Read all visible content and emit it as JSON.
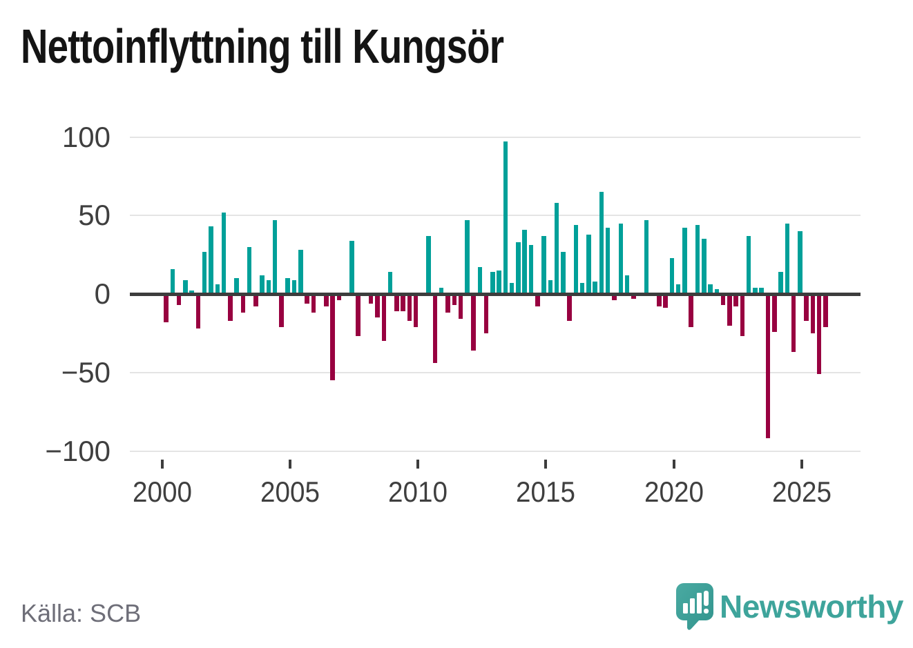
{
  "title": "Nettoinflyttning till Kungsör",
  "source": "Källa: SCB",
  "brand": {
    "name": "Newsworthy"
  },
  "colors": {
    "positive": "#00a099",
    "negative": "#980140",
    "axis": "#3d3d3d",
    "grid": "#e4e4e4",
    "tick_label": "#3f3f3f",
    "title": "#141414",
    "source": "#6e6e78",
    "brand": "#3ea49b"
  },
  "chart_data": {
    "type": "bar",
    "title": "Nettoinflyttning till Kungsör",
    "period": "quarterly",
    "xlabel": "",
    "ylabel": "",
    "ylim": [
      -100,
      100
    ],
    "grid": "horizontal",
    "legend": "none",
    "y_ticks": [
      {
        "value": 100,
        "label": "100"
      },
      {
        "value": 50,
        "label": "50"
      },
      {
        "value": 0,
        "label": "0"
      },
      {
        "value": -50,
        "label": "−50"
      },
      {
        "value": -100,
        "label": "−100"
      }
    ],
    "x_ticks": [
      {
        "year": 2000,
        "label": "2000"
      },
      {
        "year": 2005,
        "label": "2005"
      },
      {
        "year": 2010,
        "label": "2010"
      },
      {
        "year": 2015,
        "label": "2015"
      },
      {
        "year": 2020,
        "label": "2020"
      },
      {
        "year": 2025,
        "label": "2025"
      }
    ],
    "start_year": 2000,
    "series": [
      {
        "name": "Nettoinflyttning",
        "years": [
          {
            "year": 2000,
            "values": [
              -18,
              16,
              -7,
              9
            ]
          },
          {
            "year": 2001,
            "values": [
              2,
              -22,
              27,
              43
            ]
          },
          {
            "year": 2002,
            "values": [
              6,
              52,
              -17,
              10
            ]
          },
          {
            "year": 2003,
            "values": [
              -12,
              30,
              -8,
              12
            ]
          },
          {
            "year": 2004,
            "values": [
              9,
              47,
              -21,
              10
            ]
          },
          {
            "year": 2005,
            "values": [
              9,
              28,
              -6,
              -12
            ]
          },
          {
            "year": 2006,
            "values": [
              0,
              -8,
              -55,
              -4
            ]
          },
          {
            "year": 2007,
            "values": [
              0,
              34,
              -27,
              0
            ]
          },
          {
            "year": 2008,
            "values": [
              -6,
              -15,
              -30,
              14
            ]
          },
          {
            "year": 2009,
            "values": [
              -11,
              -11,
              -17,
              -21
            ]
          },
          {
            "year": 2010,
            "values": [
              0,
              37,
              -44,
              4
            ]
          },
          {
            "year": 2011,
            "values": [
              -12,
              -7,
              -16,
              47
            ]
          },
          {
            "year": 2012,
            "values": [
              -36,
              17,
              -25,
              14
            ]
          },
          {
            "year": 2013,
            "values": [
              15,
              97,
              7,
              33
            ]
          },
          {
            "year": 2014,
            "values": [
              41,
              31,
              -8,
              37
            ]
          },
          {
            "year": 2015,
            "values": [
              9,
              58,
              27,
              -17
            ]
          },
          {
            "year": 2016,
            "values": [
              44,
              7,
              38,
              8
            ]
          },
          {
            "year": 2017,
            "values": [
              65,
              42,
              -4,
              45
            ]
          },
          {
            "year": 2018,
            "values": [
              12,
              -3,
              0,
              47
            ]
          },
          {
            "year": 2019,
            "values": [
              0,
              -8,
              -9,
              23
            ]
          },
          {
            "year": 2020,
            "values": [
              6,
              42,
              -21,
              44
            ]
          },
          {
            "year": 2021,
            "values": [
              35,
              6,
              3,
              -7
            ]
          },
          {
            "year": 2022,
            "values": [
              -20,
              -8,
              -27,
              37
            ]
          },
          {
            "year": 2023,
            "values": [
              4,
              4,
              -92,
              -24
            ]
          },
          {
            "year": 2024,
            "values": [
              14,
              45,
              -37,
              40
            ]
          },
          {
            "year": 2025,
            "values": [
              -17,
              -25,
              -51,
              -21
            ]
          }
        ]
      }
    ]
  }
}
